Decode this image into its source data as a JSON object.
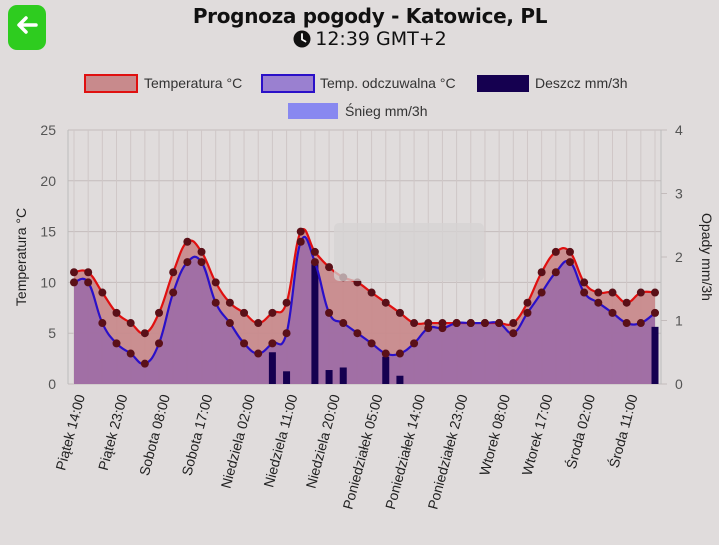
{
  "header": {
    "back_icon": "arrow-left-icon",
    "title": "Prognoza pogody - Katowice, PL",
    "time": "12:39 GMT+2",
    "clock_icon": "clock-icon"
  },
  "colors": {
    "background": "#e0dcdc",
    "back_button": "#2ecc1f",
    "temp_line": "#e01010",
    "temp_fill": "#c88a8c",
    "feel_line": "#2a10c8",
    "feel_fill": "#9a6aa8",
    "rain": "#150050",
    "snow": "#8888f0",
    "marker": "#5a1018"
  },
  "chart_data": {
    "type": "line",
    "legend": [
      "Temperatura °C",
      "Temp. odczuwalna °C",
      "Deszcz mm/3h",
      "Śnieg mm/3h"
    ],
    "legend_position": "top",
    "grid": true,
    "y_left_label": "Temperatura °C",
    "y_right_label": "Opady mm/3h",
    "y_left_range": [
      0,
      25
    ],
    "y_left_ticks": [
      "0",
      "5",
      "10",
      "15",
      "20",
      "25"
    ],
    "y_right_range": [
      0,
      4
    ],
    "y_right_ticks": [
      "0",
      "1",
      "2",
      "3",
      "4"
    ],
    "x_tick_labels": [
      "Piątek 14:00",
      "Piątek 23:00",
      "Sobota 08:00",
      "Sobota 17:00",
      "Niedziela 02:00",
      "Niedziela 11:00",
      "Niedziela 20:00",
      "Poniedziałek 05:00",
      "Poniedziałek 14:00",
      "Poniedziałek 23:00",
      "Wtorek 08:00",
      "Wtorek 17:00",
      "Środa 02:00",
      "Środa 11:00"
    ],
    "temperature": [
      11,
      11,
      9,
      7,
      6,
      5,
      7,
      11,
      14,
      13,
      10,
      8,
      7,
      6,
      7,
      8,
      15,
      13,
      11.5,
      10.5,
      10,
      9,
      8,
      7,
      6,
      6,
      6,
      6,
      6,
      6,
      6,
      6,
      8,
      11,
      13,
      13,
      10,
      9,
      9,
      8,
      9,
      9
    ],
    "feels_like": [
      10,
      10,
      6,
      4,
      3,
      2,
      4,
      9,
      12,
      12,
      8,
      6,
      4,
      3,
      4,
      5,
      14,
      12,
      7,
      6,
      5,
      4,
      3,
      3,
      4,
      5.5,
      5.5,
      6,
      6,
      6,
      6,
      5,
      7,
      9,
      11,
      12,
      9,
      8,
      7,
      6,
      6,
      7
    ],
    "rain": [
      0,
      0,
      0,
      0,
      0,
      0,
      0,
      0,
      0,
      0,
      0,
      0,
      0,
      0,
      0.5,
      0.2,
      0,
      1.9,
      0.22,
      0.26,
      0,
      0,
      0.43,
      0.13,
      0,
      0,
      0,
      0,
      0,
      0,
      0,
      0,
      0,
      0,
      0,
      0,
      0,
      0,
      0,
      0,
      0,
      0.9
    ],
    "snow": [
      0,
      0,
      0,
      0,
      0,
      0,
      0,
      0,
      0,
      0,
      0,
      0,
      0,
      0,
      0,
      0,
      0,
      0,
      0,
      0,
      0,
      0,
      0,
      0,
      0,
      0,
      0,
      0,
      0,
      0,
      0,
      0,
      0,
      0,
      0,
      0,
      0,
      0,
      0,
      0,
      0,
      0
    ]
  }
}
